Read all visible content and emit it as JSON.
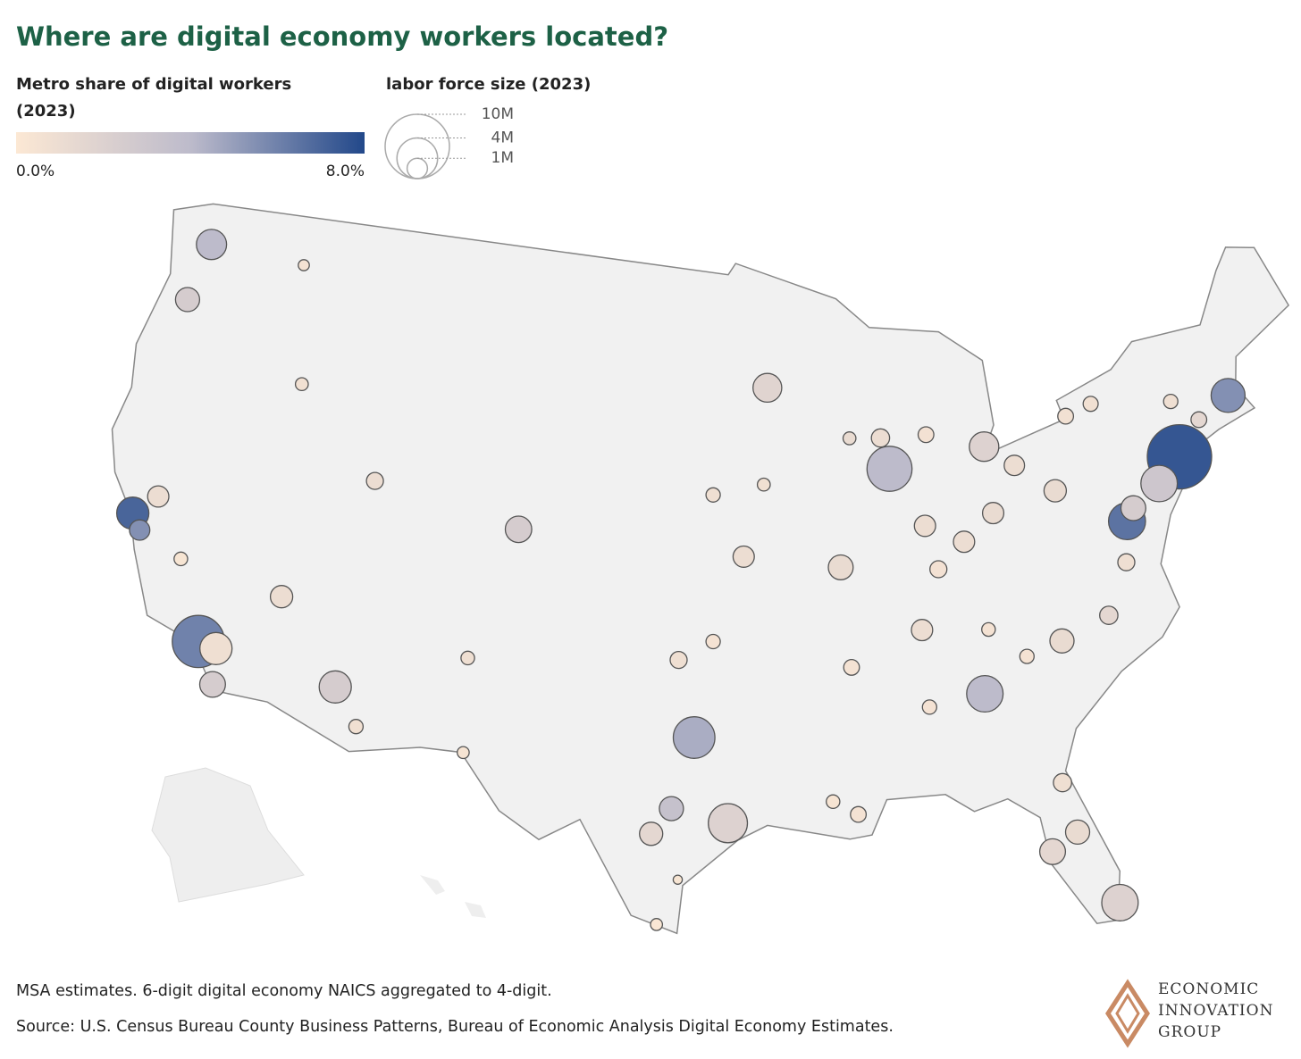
{
  "chart_data": {
    "type": "bubble-map",
    "title": "Where are digital economy workers located?",
    "color_legend": {
      "title": "Metro share of digital workers (2023)",
      "lim": [
        0,
        8
      ],
      "ticks": [
        {
          "value": 0,
          "label": "0.0%"
        },
        {
          "value": 8,
          "label": "8.0%"
        }
      ],
      "colors": [
        "#fce8d4",
        "#bdbbcb",
        "#22488a"
      ]
    },
    "size_legend": {
      "title": "labor force size (2023)",
      "ticks": [
        {
          "value": 10000000,
          "label": "10M"
        },
        {
          "value": 4000000,
          "label": "4M"
        },
        {
          "value": 1000000,
          "label": "1M"
        }
      ]
    },
    "points": {
      "lon": [
        -74.0,
        -118.2,
        -87.6,
        -96.8,
        -95.4,
        -77.0,
        -75.2,
        -84.4,
        -80.2,
        -71.06,
        -122.4,
        -112.1,
        -83.0,
        -122.3,
        -93.3,
        -117.4,
        -117.2,
        -82.5,
        -104.99,
        -76.6,
        -90.2,
        -81.4,
        -80.8,
        -98.5,
        -122.7,
        -121.5,
        -80.0,
        -97.7,
        -115.1,
        -121.9,
        -94.6,
        -83.0,
        -86.2,
        -81.7,
        -84.5,
        -86.8,
        -78.6,
        -111.9,
        -87.9,
        -81.7,
        -97.5,
        -90.0,
        -77.4,
        -90.1,
        -78.9,
        -72.7,
        -85.8,
        -86.8,
        -110.97,
        -106.65,
        -116.2,
        -96.0,
        -106.4,
        -119.8,
        -96.0,
        -117.4,
        -73.8,
        -77.6,
        -83.9,
        -82.4,
        -93.6,
        -89.4,
        -85.7,
        -98.2,
        -97.4,
        -91.1
      ],
      "lat": [
        40.7,
        34.05,
        41.9,
        32.8,
        29.8,
        38.9,
        39.95,
        33.75,
        25.8,
        42.36,
        37.8,
        33.45,
        42.3,
        47.6,
        44.98,
        33.95,
        32.7,
        27.95,
        39.74,
        39.3,
        38.6,
        28.5,
        35.2,
        29.4,
        45.5,
        38.6,
        40.4,
        30.3,
        36.2,
        37.3,
        39.1,
        39.96,
        39.8,
        41.5,
        39.1,
        36.2,
        35.8,
        40.76,
        43.0,
        30.3,
        35.5,
        35.1,
        37.5,
        29.95,
        42.9,
        41.8,
        38.25,
        33.5,
        32.2,
        35.1,
        43.6,
        41.26,
        31.8,
        36.7,
        36.15,
        47.7,
        42.65,
        43.16,
        35.96,
        34.85,
        41.6,
        43.07,
        42.96,
        26.2,
        27.8,
        30.45
      ],
      "share": [
        7.5,
        6.0,
        4.0,
        4.5,
        2.0,
        6.5,
        3.0,
        4.0,
        2.0,
        5.5,
        7.0,
        2.5,
        2.0,
        4.0,
        1.8,
        0.8,
        2.5,
        1.5,
        2.5,
        2.5,
        1.2,
        1.2,
        1.2,
        1.5,
        2.5,
        1.0,
        1.2,
        3.5,
        1.0,
        5.5,
        1.0,
        1.2,
        1.0,
        1.0,
        1.0,
        1.0,
        1.5,
        1.0,
        1.0,
        0.8,
        0.8,
        0.5,
        0.8,
        0.5,
        0.7,
        1.5,
        0.6,
        0.5,
        0.7,
        0.8,
        0.7,
        0.8,
        0.4,
        0.3,
        0.5,
        0.5,
        0.8,
        0.7,
        0.5,
        0.5,
        0.7,
        1.2,
        0.6,
        0.2,
        0.3,
        0.4
      ],
      "labor_force": [
        10000000,
        6600000,
        4900000,
        4200000,
        3700000,
        3300000,
        3200000,
        3200000,
        3200000,
        2800000,
        2500000,
        2500000,
        2100000,
        2200000,
        2000000,
        2500000,
        1600000,
        1600000,
        1700000,
        1500000,
        1500000,
        1400000,
        1400000,
        1300000,
        1400000,
        1100000,
        1200000,
        1400000,
        1200000,
        1000000,
        1100000,
        1100000,
        1100000,
        1000000,
        1100000,
        1100000,
        800000,
        700000,
        800000,
        800000,
        700000,
        600000,
        700000,
        600000,
        600000,
        600000,
        700000,
        500000,
        500000,
        450000,
        400000,
        500000,
        350000,
        450000,
        500000,
        300000,
        500000,
        550000,
        450000,
        500000,
        400000,
        400000,
        600000,
        350000,
        200000,
        450000
      ]
    },
    "notes": [
      "MSA estimates. 6-digit digital economy NAICS aggregated to 4-digit.",
      "Source: U.S. Census Bureau County Business Patterns, Bureau of Economic Analysis Digital Economy Estimates."
    ]
  },
  "logo": [
    "ECONOMIC",
    "INNOVATION",
    "GROUP"
  ]
}
